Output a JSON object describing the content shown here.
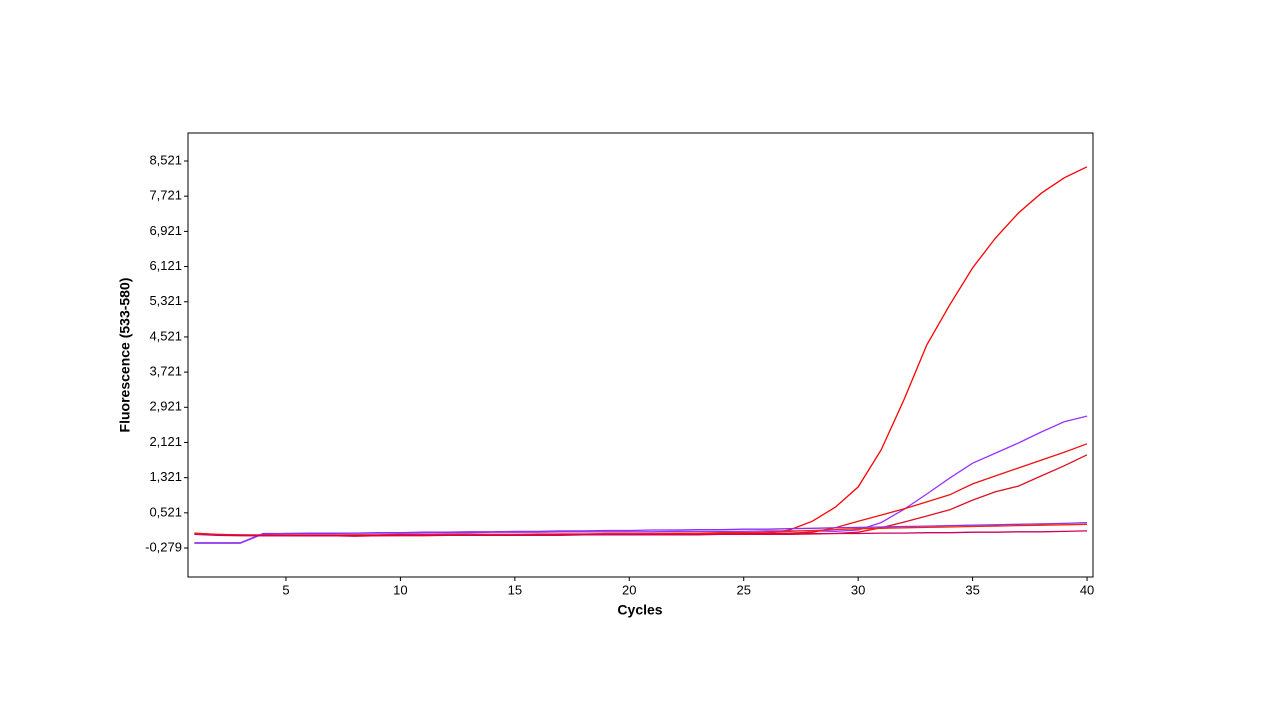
{
  "chart_data": {
    "type": "line",
    "xlabel": "Cycles",
    "ylabel": "Fluorescence (533-580)",
    "x": [
      1,
      2,
      3,
      4,
      5,
      6,
      7,
      8,
      9,
      10,
      11,
      12,
      13,
      14,
      15,
      16,
      17,
      18,
      19,
      20,
      21,
      22,
      23,
      24,
      25,
      26,
      27,
      28,
      29,
      30,
      31,
      32,
      33,
      34,
      35,
      36,
      37,
      38,
      39,
      40
    ],
    "series": [
      {
        "color": "#ff0000",
        "values": [
          0.06,
          0.03,
          0.02,
          0.01,
          0.01,
          0.0,
          0.0,
          0.0,
          0.01,
          0.01,
          0.01,
          0.02,
          0.02,
          0.02,
          0.02,
          0.02,
          0.03,
          0.03,
          0.03,
          0.03,
          0.03,
          0.03,
          0.04,
          0.04,
          0.04,
          0.05,
          0.13,
          0.33,
          0.65,
          1.11,
          1.95,
          3.09,
          4.34,
          5.25,
          6.09,
          6.77,
          7.34,
          7.79,
          8.14,
          8.39
        ]
      },
      {
        "color": "#9933ff",
        "values": [
          -0.17,
          -0.17,
          -0.17,
          0.04,
          0.05,
          0.05,
          0.05,
          0.06,
          0.06,
          0.06,
          0.07,
          0.07,
          0.07,
          0.08,
          0.08,
          0.08,
          0.09,
          0.09,
          0.09,
          0.09,
          0.09,
          0.1,
          0.1,
          0.1,
          0.1,
          0.11,
          0.11,
          0.11,
          0.1,
          0.13,
          0.3,
          0.6,
          0.95,
          1.31,
          1.65,
          1.88,
          2.11,
          2.36,
          2.59,
          2.72
        ]
      },
      {
        "color": "#ee1111",
        "values": [
          0.05,
          0.03,
          0.02,
          0.02,
          0.02,
          0.02,
          0.02,
          0.02,
          0.02,
          0.03,
          0.03,
          0.03,
          0.03,
          0.03,
          0.03,
          0.03,
          0.04,
          0.04,
          0.04,
          0.04,
          0.04,
          0.04,
          0.05,
          0.05,
          0.05,
          0.05,
          0.06,
          0.08,
          0.18,
          0.33,
          0.47,
          0.61,
          0.77,
          0.93,
          1.18,
          1.36,
          1.54,
          1.72,
          1.9,
          2.09
        ]
      },
      {
        "color": "#dd1122",
        "values": [
          0.04,
          0.02,
          0.01,
          0.0,
          0.0,
          0.0,
          0.0,
          -0.01,
          0.0,
          0.0,
          0.0,
          0.01,
          0.01,
          0.01,
          0.01,
          0.01,
          0.01,
          0.02,
          0.02,
          0.02,
          0.02,
          0.02,
          0.02,
          0.03,
          0.03,
          0.03,
          0.03,
          0.04,
          0.05,
          0.08,
          0.18,
          0.31,
          0.45,
          0.59,
          0.81,
          1.0,
          1.13,
          1.36,
          1.59,
          1.84
        ]
      },
      {
        "color": "#8833ee",
        "values": [
          -0.16,
          -0.16,
          -0.16,
          0.05,
          0.05,
          0.06,
          0.06,
          0.06,
          0.07,
          0.07,
          0.08,
          0.08,
          0.09,
          0.09,
          0.1,
          0.1,
          0.11,
          0.11,
          0.12,
          0.12,
          0.13,
          0.13,
          0.14,
          0.14,
          0.15,
          0.15,
          0.16,
          0.17,
          0.18,
          0.19,
          0.2,
          0.21,
          0.22,
          0.23,
          0.24,
          0.25,
          0.26,
          0.27,
          0.28,
          0.3
        ]
      },
      {
        "color": "#ff2200",
        "values": [
          0.05,
          0.02,
          0.01,
          0.01,
          0.01,
          0.01,
          0.01,
          0.02,
          0.02,
          0.02,
          0.02,
          0.03,
          0.03,
          0.03,
          0.03,
          0.04,
          0.04,
          0.04,
          0.05,
          0.05,
          0.05,
          0.06,
          0.06,
          0.07,
          0.07,
          0.08,
          0.1,
          0.12,
          0.14,
          0.16,
          0.17,
          0.18,
          0.19,
          0.2,
          0.21,
          0.22,
          0.23,
          0.24,
          0.25,
          0.26
        ]
      },
      {
        "color": "#cc0066",
        "values": [
          0.03,
          0.01,
          0.0,
          0.0,
          0.0,
          0.0,
          0.0,
          0.0,
          0.0,
          0.01,
          0.01,
          0.01,
          0.01,
          0.01,
          0.01,
          0.02,
          0.02,
          0.02,
          0.02,
          0.02,
          0.03,
          0.03,
          0.03,
          0.03,
          0.04,
          0.04,
          0.04,
          0.05,
          0.05,
          0.05,
          0.06,
          0.06,
          0.07,
          0.07,
          0.08,
          0.08,
          0.09,
          0.09,
          0.1,
          0.11
        ]
      }
    ],
    "xlim": [
      0.72,
      40.26
    ],
    "ylim": [
      -0.938,
      9.158
    ],
    "xticks": [
      5,
      10,
      15,
      20,
      25,
      30,
      35,
      40
    ],
    "yticks": [
      {
        "value": -0.279,
        "label": "-0,279"
      },
      {
        "value": 0.521,
        "label": "0,521"
      },
      {
        "value": 1.321,
        "label": "1,321"
      },
      {
        "value": 2.121,
        "label": "2,121"
      },
      {
        "value": 2.921,
        "label": "2,921"
      },
      {
        "value": 3.721,
        "label": "3,721"
      },
      {
        "value": 4.521,
        "label": "4,521"
      },
      {
        "value": 5.321,
        "label": "5,321"
      },
      {
        "value": 6.121,
        "label": "6,121"
      },
      {
        "value": 6.921,
        "label": "6,921"
      },
      {
        "value": 7.721,
        "label": "7,721"
      },
      {
        "value": 8.521,
        "label": "8,521"
      }
    ]
  }
}
